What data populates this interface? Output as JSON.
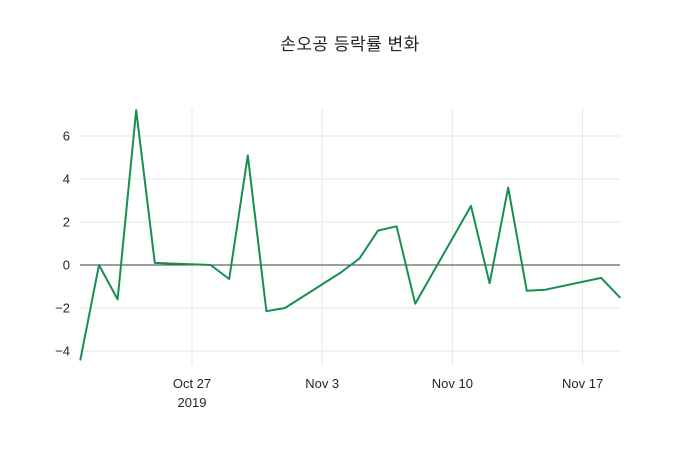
{
  "title": "손오공 등락률 변화",
  "chart_data": {
    "type": "line",
    "title": "손오공 등락률 변화",
    "xlabel": "",
    "ylabel": "",
    "legend": "none",
    "grid": true,
    "zero_line": true,
    "x_range": [
      "2019-10-21",
      "2019-11-19"
    ],
    "ylim": [
      -4.9,
      7.7
    ],
    "x": [
      "2019-10-21",
      "2019-10-22",
      "2019-10-23",
      "2019-10-24",
      "2019-10-25",
      "2019-10-28",
      "2019-10-29",
      "2019-10-30",
      "2019-10-31",
      "2019-11-01",
      "2019-11-04",
      "2019-11-05",
      "2019-11-06",
      "2019-11-07",
      "2019-11-08",
      "2019-11-11",
      "2019-11-12",
      "2019-11-13",
      "2019-11-14",
      "2019-11-15",
      "2019-11-18",
      "2019-11-19"
    ],
    "series": [
      {
        "name": "손오공 등락률",
        "color": "#178f50",
        "values": [
          -4.4,
          0.0,
          -1.6,
          7.2,
          0.1,
          0.0,
          -0.65,
          5.1,
          -2.15,
          -2.0,
          -0.35,
          0.3,
          1.6,
          1.8,
          -1.8,
          2.75,
          -0.85,
          3.6,
          -1.2,
          -1.15,
          -0.6,
          -1.5
        ]
      }
    ],
    "x_ticks": [
      {
        "date": "2019-10-27",
        "label": "Oct 27",
        "sublabel": "2019"
      },
      {
        "date": "2019-11-03",
        "label": "Nov 3",
        "sublabel": ""
      },
      {
        "date": "2019-11-10",
        "label": "Nov 10",
        "sublabel": ""
      },
      {
        "date": "2019-11-17",
        "label": "Nov 17",
        "sublabel": ""
      }
    ],
    "y_ticks": [
      {
        "value": -4,
        "label": "−4"
      },
      {
        "value": -2,
        "label": "−2"
      },
      {
        "value": 0,
        "label": "0"
      },
      {
        "value": 2,
        "label": "2"
      },
      {
        "value": 4,
        "label": "4"
      },
      {
        "value": 6,
        "label": "6"
      }
    ]
  },
  "colors": {
    "line": "#178f50",
    "grid": "#e6e6e6",
    "zero_line": "#3c3c3c",
    "text": "#262626",
    "background": "#ffffff"
  }
}
